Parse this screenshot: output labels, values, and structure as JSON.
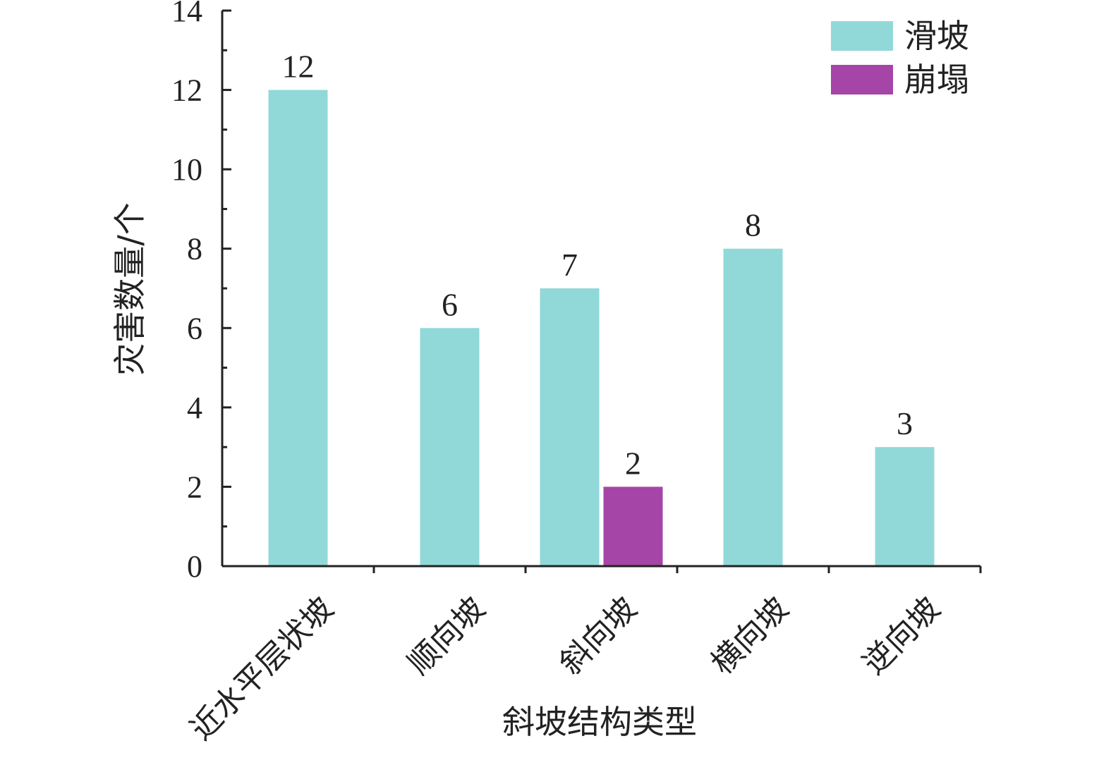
{
  "chart_data": {
    "type": "bar",
    "categories": [
      "近水平层状坡",
      "顺向坡",
      "斜向坡",
      "横向坡",
      "逆向坡"
    ],
    "series": [
      {
        "name": "滑坡",
        "color": "#91d9d8",
        "values": [
          12,
          6,
          7,
          8,
          3
        ]
      },
      {
        "name": "崩塌",
        "color": "#a545a8",
        "values": [
          0,
          0,
          2,
          0,
          0
        ]
      }
    ],
    "xlabel": "斜坡结构类型",
    "ylabel": "灾害数量/个",
    "ylim": [
      0,
      14
    ],
    "yticks": [
      0,
      2,
      4,
      6,
      8,
      10,
      12,
      14
    ],
    "grid": false,
    "legend_position": "top-right"
  }
}
